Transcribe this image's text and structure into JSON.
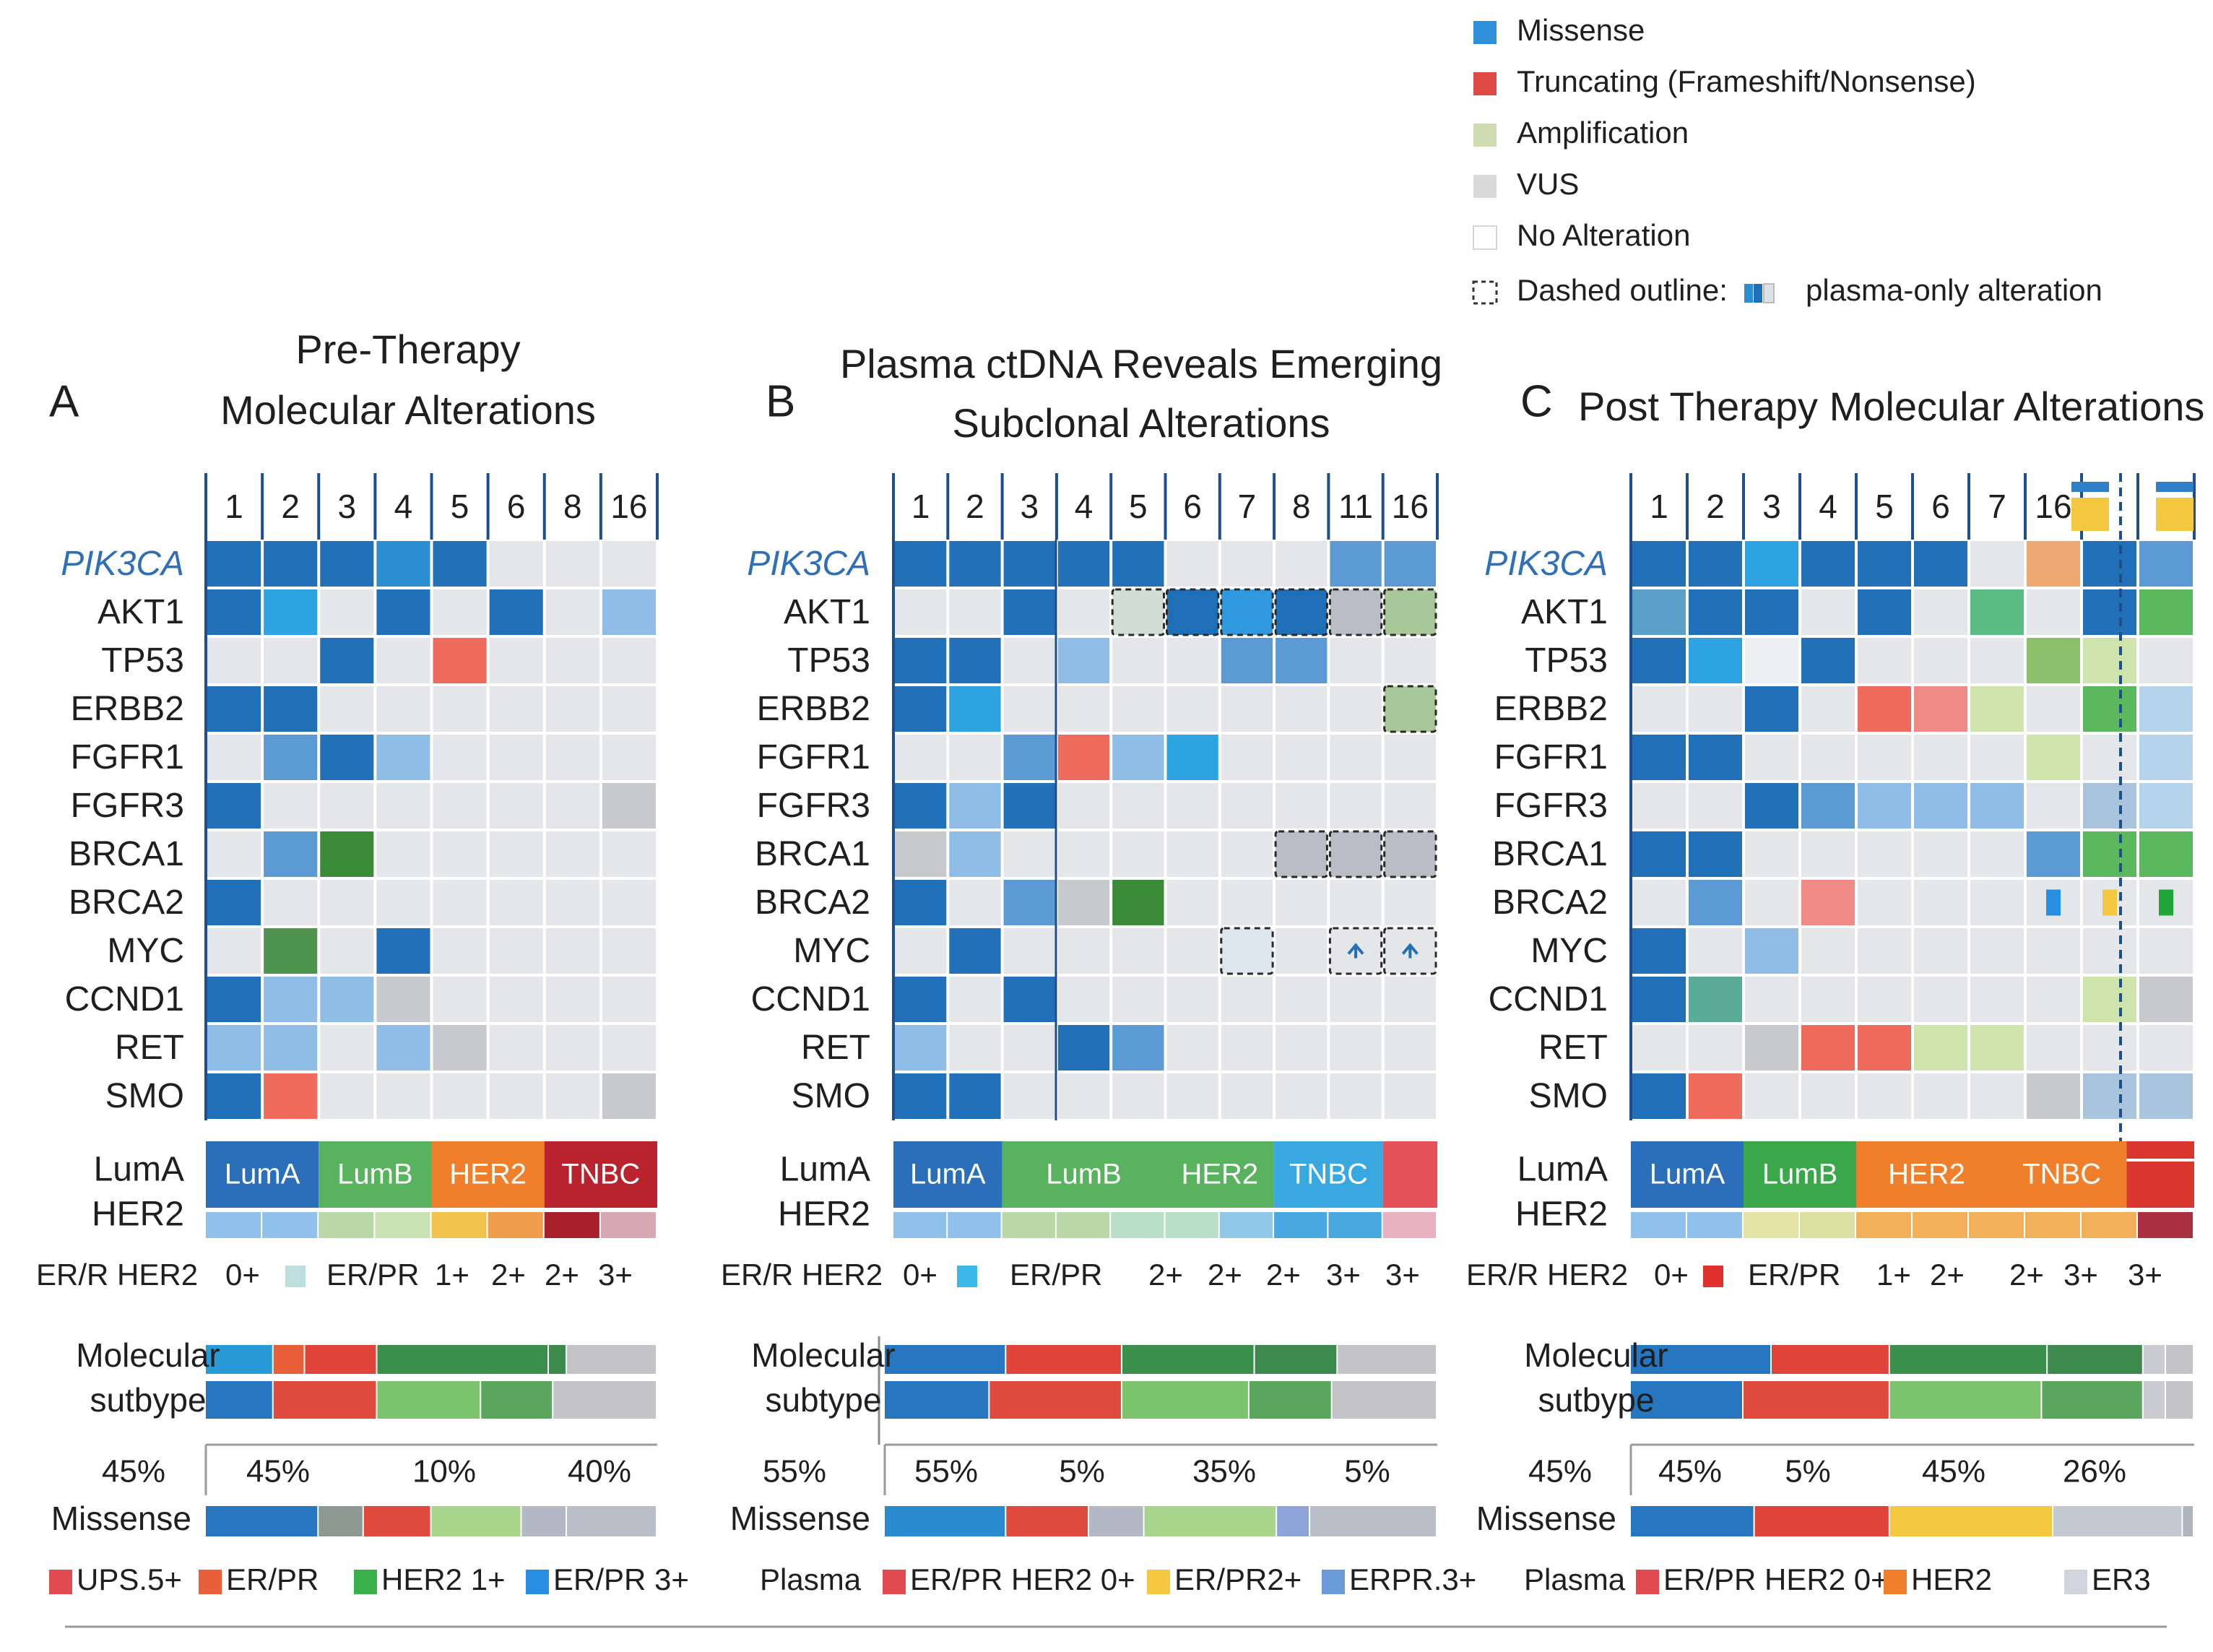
{
  "legend": {
    "items": [
      {
        "label": "Missense",
        "color": "#2f8fd8"
      },
      {
        "label": "Truncating (Frameshift/Nonsense)",
        "color": "#e04a45"
      },
      {
        "label": "Amplification",
        "color": "#cfdcb2"
      },
      {
        "label": "VUS",
        "color": "#dadada"
      },
      {
        "label": "No Alteration",
        "color": "#ffffff"
      }
    ],
    "dashed_prefix": "Dashed outline:",
    "dashed_suffix": "plasma-only alteration"
  },
  "genes": [
    "PIK3CA",
    "AKT1",
    "TP53",
    "ERBB2",
    "FGFR1",
    "FGFR3",
    "BRCA1",
    "BRCA2",
    "MYC",
    "CCND1",
    "RET",
    "SMO"
  ],
  "chart_data": [
    {
      "type": "heatmap",
      "panel_letter": "A",
      "title": [
        "Pre-Therapy",
        "Molecular Alterations"
      ],
      "columns": [
        "1",
        "2",
        "3",
        "4",
        "5",
        "6",
        "8",
        "16"
      ],
      "rows": [
        "PIK3CA",
        "AKT1",
        "TP53",
        "ERBB2",
        "FGFR1",
        "FGFR3",
        "BRCA1",
        "BRCA2",
        "MYC",
        "CCND1",
        "RET",
        "SMO"
      ],
      "values": [
        [
          "M",
          "M",
          "M",
          "M2",
          "M",
          "V",
          "V",
          "V"
        ],
        [
          "M",
          "M3",
          "V",
          "M",
          "V",
          "M",
          "V",
          "L"
        ],
        [
          "V",
          "V",
          "M",
          "V",
          "T",
          "V",
          "V",
          "V"
        ],
        [
          "M",
          "M",
          "V",
          "V",
          "V",
          "V",
          "V",
          "V"
        ],
        [
          "V",
          "M4",
          "M",
          "L",
          "V",
          "V",
          "V",
          "V"
        ],
        [
          "M",
          "V",
          "V",
          "V",
          "V",
          "V",
          "V",
          "V2"
        ],
        [
          "V",
          "M4",
          "G",
          "V",
          "V",
          "V",
          "V",
          "V"
        ],
        [
          "M",
          "V",
          "V",
          "V",
          "V",
          "V",
          "V",
          "V"
        ],
        [
          "V",
          "G2",
          "V",
          "M",
          "V",
          "V",
          "V",
          "V"
        ],
        [
          "M",
          "L",
          "L",
          "V2",
          "V",
          "V",
          "V",
          "V"
        ],
        [
          "L",
          "L",
          "V",
          "L",
          "V2",
          "V",
          "V",
          "V"
        ],
        [
          "M",
          "T",
          "V",
          "V",
          "V",
          "V",
          "V",
          "V2"
        ]
      ],
      "subtype_labels": [
        "LumA",
        "HER2"
      ],
      "subtype_blocks": [
        {
          "label": "LumA",
          "color": "#2b6fba",
          "span": 2
        },
        {
          "label": "LumB",
          "color": "#59b35e",
          "span": 2
        },
        {
          "label": "HER2",
          "color": "#ef7f2a",
          "span": 2
        },
        {
          "label": "TNBC",
          "color": "#b8232e",
          "span": 2
        }
      ],
      "strip_colors": [
        "#8fc1ea",
        "#8fc1ea",
        "#b9d8a6",
        "#c9e0b0",
        "#f3c24a",
        "#ef9d4a",
        "#a8202b",
        "#d8a8b2"
      ],
      "status_line": [
        "ER/R HER2",
        "0+",
        "ER/PR",
        "1+",
        "2+",
        "2+",
        "3+"
      ],
      "status_swatch": "#bcdede",
      "molecular_label": [
        "Molecular",
        "sutbype"
      ],
      "bar1": [
        {
          "v": 0.15,
          "c": "#2a9ad6"
        },
        {
          "v": 0.07,
          "c": "#e8603a"
        },
        {
          "v": 0.16,
          "c": "#e0433a"
        },
        {
          "v": 0.38,
          "c": "#3a8f4a"
        },
        {
          "v": 0.04,
          "c": "#3e8a4e"
        },
        {
          "v": 0.2,
          "c": "#c4c4c8"
        }
      ],
      "bar2": [
        {
          "v": 0.15,
          "c": "#2777c0"
        },
        {
          "v": 0.23,
          "c": "#e04a3c"
        },
        {
          "v": 0.23,
          "c": "#7cc36e"
        },
        {
          "v": 0.16,
          "c": "#5ba65f"
        },
        {
          "v": 0.23,
          "c": "#c4c4c8"
        }
      ],
      "pct_left": "45%",
      "pcts": [
        "45%",
        "10%",
        "40%"
      ],
      "missense_label": "Missense",
      "bar3": [
        {
          "v": 0.25,
          "c": "#2777c0"
        },
        {
          "v": 0.1,
          "c": "#8d9a94"
        },
        {
          "v": 0.15,
          "c": "#e04a3c"
        },
        {
          "v": 0.2,
          "c": "#a8d48c"
        },
        {
          "v": 0.1,
          "c": "#b4b8c4"
        },
        {
          "v": 0.2,
          "c": "#b9bfc8"
        }
      ],
      "bottom_legend": [
        {
          "label": "UPS.5+",
          "color": "#e04a50"
        },
        {
          "label": "ER/PR",
          "color": "#e8603a"
        },
        {
          "label": "HER2 1+",
          "color": "#3ab04a"
        },
        {
          "label": "ER/PR 3+",
          "color": "#2a8ee0"
        }
      ]
    },
    {
      "type": "heatmap",
      "panel_letter": "B",
      "title": [
        "Plasma ctDNA Reveals Emerging",
        "Subclonal Alterations"
      ],
      "columns": [
        "1",
        "2",
        "3",
        "4",
        "5",
        "6",
        "7",
        "8",
        "11",
        "16"
      ],
      "rows": [
        "PIK3CA",
        "AKT1",
        "TP53",
        "ERBB2",
        "FGFR1",
        "FGFR3",
        "BRCA1",
        "BRCA2",
        "MYC",
        "CCND1",
        "RET",
        "SMO"
      ],
      "values": [
        [
          "M",
          "M",
          "M",
          "M",
          "M",
          "V",
          "V",
          "V",
          "M4",
          "M4"
        ],
        [
          "V",
          "V",
          "M",
          "V",
          "D1",
          "D2",
          "D3",
          "D2",
          "D4",
          "D5"
        ],
        [
          "M",
          "M",
          "V",
          "L",
          "V",
          "V",
          "M4",
          "M4",
          "V",
          "V"
        ],
        [
          "M",
          "M3",
          "V",
          "V",
          "V",
          "V",
          "V",
          "V",
          "V",
          "D5"
        ],
        [
          "V",
          "V",
          "M4",
          "T",
          "L",
          "M3",
          "V",
          "V",
          "V",
          "V"
        ],
        [
          "M",
          "L",
          "M",
          "V",
          "V",
          "V",
          "V",
          "V",
          "V",
          "V"
        ],
        [
          "V2",
          "L",
          "V",
          "V",
          "V",
          "V",
          "V",
          "D4",
          "D4",
          "D4"
        ],
        [
          "M",
          "V",
          "M4",
          "V2",
          "G",
          "V",
          "V",
          "V",
          "V",
          "V"
        ],
        [
          "V",
          "M",
          "V",
          "V",
          "V",
          "V",
          "D0",
          "V",
          "DA",
          "DA"
        ],
        [
          "M",
          "V",
          "M",
          "V",
          "V",
          "V",
          "V",
          "V",
          "V",
          "V"
        ],
        [
          "L",
          "V",
          "V",
          "M",
          "M4",
          "V",
          "V",
          "V",
          "V",
          "V"
        ],
        [
          "M",
          "M",
          "V",
          "V",
          "V",
          "V",
          "V",
          "V",
          "V",
          "V"
        ]
      ],
      "subtype_labels": [
        "LumA",
        "HER2"
      ],
      "subtype_blocks": [
        {
          "label": "LumA",
          "color": "#2b6fba",
          "span": 2
        },
        {
          "label": "LumB",
          "color": "#59b35e",
          "span": 3
        },
        {
          "label": "HER2",
          "color": "#59b35e",
          "span": 2
        },
        {
          "label": "TNBC",
          "color": "#3aa8e0",
          "span": 2
        },
        {
          "label": "",
          "color": "#e4525a",
          "span": 1
        }
      ],
      "strip_colors": [
        "#8fc1ea",
        "#8fc1ea",
        "#b9d8a6",
        "#b9d8a6",
        "#b9dfc8",
        "#b9dfc8",
        "#8fc8e8",
        "#4aa8e0",
        "#4aa8e0",
        "#eab2c0"
      ],
      "status_line": [
        "ER/R HER2",
        "0+",
        "ER/PR",
        "2+",
        "2+",
        "2+",
        "3+",
        "3+"
      ],
      "status_swatch": "#3ab8e8",
      "molecular_label": [
        "Molecular",
        "subtype"
      ],
      "bar1": [
        {
          "v": 0.22,
          "c": "#2777c0"
        },
        {
          "v": 0.21,
          "c": "#e0433a"
        },
        {
          "v": 0.24,
          "c": "#3a8f4a"
        },
        {
          "v": 0.15,
          "c": "#3e8a4e"
        },
        {
          "v": 0.18,
          "c": "#c4c4c8"
        }
      ],
      "bar2": [
        {
          "v": 0.19,
          "c": "#2777c0"
        },
        {
          "v": 0.24,
          "c": "#e04a3c"
        },
        {
          "v": 0.23,
          "c": "#7cc36e"
        },
        {
          "v": 0.15,
          "c": "#5ba65f"
        },
        {
          "v": 0.19,
          "c": "#c4c4c8"
        }
      ],
      "pct_left": "55%",
      "pcts": [
        "55%",
        "5%",
        "35%",
        "5%"
      ],
      "missense_label": "Missense",
      "bar3": [
        {
          "v": 0.22,
          "c": "#2a8ad0"
        },
        {
          "v": 0.15,
          "c": "#e04a3c"
        },
        {
          "v": 0.1,
          "c": "#b4b8c4"
        },
        {
          "v": 0.24,
          "c": "#a8d48c"
        },
        {
          "v": 0.06,
          "c": "#8ea4d8"
        },
        {
          "v": 0.23,
          "c": "#b9bfc8"
        }
      ],
      "bottom_legend": [
        {
          "label": "Plasma",
          "color": ""
        },
        {
          "label": "ER/PR HER2 0+",
          "color": "#e04a50"
        },
        {
          "label": "ER/PR2+",
          "color": "#f5c842"
        },
        {
          "label": "ERPR.3+",
          "color": "#6a9ad8"
        }
      ]
    },
    {
      "type": "heatmap",
      "panel_letter": "C",
      "title": [
        "Post Therapy Molecular Alterations"
      ],
      "columns": [
        "1",
        "2",
        "3",
        "4",
        "5",
        "6",
        "7",
        "16",
        "",
        ""
      ],
      "rows": [
        "PIK3CA",
        "AKT1",
        "TP53",
        "ERBB2",
        "FGFR1",
        "FGFR3",
        "BRCA1",
        "BRCA2",
        "MYC",
        "CCND1",
        "RET",
        "SMO"
      ],
      "values": [
        [
          "M",
          "M",
          "M3",
          "M",
          "M",
          "M",
          "V",
          "O",
          "M",
          "M4"
        ],
        [
          "M5",
          "M",
          "M",
          "V",
          "M",
          "V",
          "G3",
          "V",
          "M",
          "G4"
        ],
        [
          "M",
          "M3",
          "V0",
          "M",
          "V",
          "V",
          "V",
          "G5",
          "A",
          "V"
        ],
        [
          "V",
          "V",
          "M",
          "V",
          "T",
          "T2",
          "A",
          "V",
          "G4",
          "L2"
        ],
        [
          "M",
          "M",
          "V",
          "V",
          "V",
          "V",
          "V",
          "A",
          "V",
          "L2"
        ],
        [
          "V",
          "V",
          "M",
          "M4",
          "L",
          "L",
          "L",
          "V",
          "L3",
          "L2"
        ],
        [
          "M",
          "M",
          "V",
          "V",
          "V",
          "V",
          "V",
          "M4",
          "G4",
          "G4"
        ],
        [
          "V",
          "M4",
          "V",
          "T2",
          "V",
          "V",
          "V",
          "BB",
          "BY",
          "BG"
        ],
        [
          "M",
          "V",
          "L",
          "V",
          "V",
          "V",
          "V",
          "V",
          "V",
          "V"
        ],
        [
          "M",
          "G6",
          "V",
          "V",
          "V",
          "V",
          "V",
          "V",
          "A",
          "V2"
        ],
        [
          "V",
          "V",
          "V2",
          "T",
          "T",
          "A",
          "A",
          "V",
          "V",
          "V"
        ],
        [
          "M",
          "T",
          "V",
          "V",
          "V",
          "V",
          "V",
          "V2",
          "L3",
          "L3"
        ]
      ],
      "subtype_labels": [
        "LumA",
        "HER2"
      ],
      "subtype_blocks": [
        {
          "label": "LumA",
          "color": "#2b6fba",
          "span": 2
        },
        {
          "label": "LumB",
          "color": "#3aa84a",
          "span": 2
        },
        {
          "label": "HER2",
          "color": "#ef7f2a",
          "span": 2.5
        },
        {
          "label": "TNBC",
          "color": "#ef7f2a",
          "span": 2.3
        },
        {
          "label": "",
          "color": "#d8362e",
          "span": 1.2
        }
      ],
      "strip_colors": [
        "#8fc1ea",
        "#8fc1ea",
        "#e3e3a3",
        "#d9e0a0",
        "#f3b05a",
        "#f3b05a",
        "#f3b05a",
        "#f3b05a",
        "#f3b05a",
        "#a83040"
      ],
      "status_line": [
        "ER/R HER2",
        "0+",
        "ER/PR",
        "1+",
        "2+",
        "2+",
        "3+",
        "3+"
      ],
      "status_swatch": "#e0302e",
      "molecular_label": [
        "Molecular",
        "sutbype"
      ],
      "bar1": [
        {
          "v": 0.25,
          "c": "#2777c0"
        },
        {
          "v": 0.21,
          "c": "#e0433a"
        },
        {
          "v": 0.28,
          "c": "#3a8f4a"
        },
        {
          "v": 0.17,
          "c": "#3e8a4e"
        },
        {
          "v": 0.04,
          "c": "#c9cbd0"
        },
        {
          "v": 0.05,
          "c": "#c4c4c8"
        }
      ],
      "bar2": [
        {
          "v": 0.2,
          "c": "#2777c0"
        },
        {
          "v": 0.26,
          "c": "#e04a3c"
        },
        {
          "v": 0.27,
          "c": "#7cc36e"
        },
        {
          "v": 0.18,
          "c": "#5ba65f"
        },
        {
          "v": 0.04,
          "c": "#c9cbd0"
        },
        {
          "v": 0.05,
          "c": "#c4c4c8"
        }
      ],
      "pct_left": "45%",
      "pcts": [
        "45%",
        "5%",
        "45%",
        "26%"
      ],
      "missense_label": "Missense",
      "bar3": [
        {
          "v": 0.22,
          "c": "#2777c0"
        },
        {
          "v": 0.24,
          "c": "#e0433a"
        },
        {
          "v": 0.29,
          "c": "#f5c842"
        },
        {
          "v": 0.23,
          "c": "#c4c8d0"
        },
        {
          "v": 0.02,
          "c": "#b0b4bc"
        }
      ],
      "bottom_legend": [
        {
          "label": "Plasma",
          "color": ""
        },
        {
          "label": "ER/PR HER2 0+",
          "color": "#e04a50"
        },
        {
          "label": "HER2",
          "color": "#ef7f2a"
        },
        {
          "label": "ER3",
          "color": "#d0d4dc"
        }
      ]
    }
  ]
}
